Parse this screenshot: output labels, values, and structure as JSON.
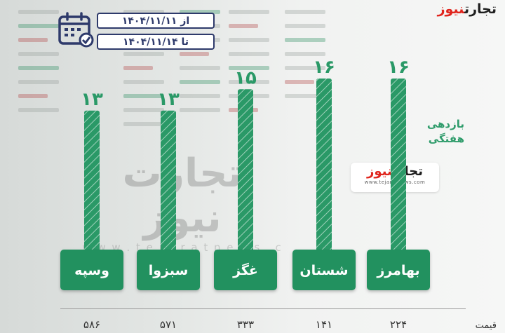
{
  "logo": {
    "black": "تجارت",
    "red": "نیوز",
    "url": "www.tejaratnews.com"
  },
  "watermark": {
    "name": "تجارت نیوز",
    "url": "w w w . t e j a r a t n e w s . c o m"
  },
  "date": {
    "from": "از ۱۴۰۴/۱۱/۱۱",
    "to": "تا ۱۴۰۴/۱۱/۱۴"
  },
  "side_label": {
    "line1": "بازدهی",
    "line2": "هفتگی"
  },
  "price_label": "قیمت",
  "colors": {
    "bar": "#2a9967",
    "bar_stripe": "#ffffff",
    "label_box": "#24915f",
    "value_text": "#2a9967",
    "calendar": "#2e3a6b",
    "brand_red": "#e0241c"
  },
  "chart_data": {
    "type": "bar",
    "categories": [
      "وسپه",
      "سبزوا",
      "غگز",
      "شستان",
      "بهامرز"
    ],
    "values": [
      13,
      13,
      15,
      16,
      16
    ],
    "value_labels": [
      "۱۳",
      "۱۳",
      "۱۵",
      "۱۶",
      "۱۶"
    ],
    "prices": [
      "۵۸۶",
      "۵۷۱",
      "۳۳۳",
      "۱۴۱",
      "۲۲۴"
    ],
    "title": "بازدهی هفتگی",
    "ylim": [
      0,
      16
    ]
  }
}
